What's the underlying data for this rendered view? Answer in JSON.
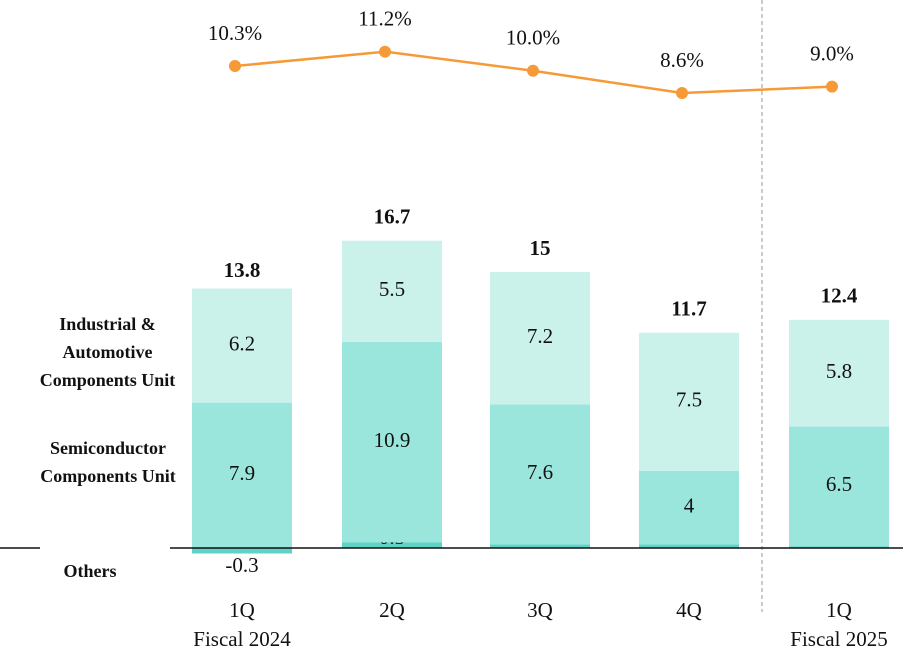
{
  "chart_data": {
    "type": "stacked-bar-line",
    "categories": [
      "1Q",
      "2Q",
      "3Q",
      "4Q",
      "1Q"
    ],
    "period_labels": [
      "Fiscal 2024",
      null,
      null,
      null,
      "Fiscal 2025"
    ],
    "series": [
      {
        "name": "Others",
        "color": "#5fd4c6",
        "values": [
          -0.3,
          0.3,
          0.2,
          0.2,
          0.1
        ]
      },
      {
        "name": "Semiconductor Components Unit",
        "color": "#9be6dc",
        "values": [
          7.9,
          10.9,
          7.6,
          4.0,
          6.5
        ]
      },
      {
        "name": "Industrial & Automotive Components Unit",
        "color": "#cbf1eb",
        "values": [
          6.2,
          5.5,
          7.2,
          7.5,
          5.8
        ]
      }
    ],
    "totals": [
      13.8,
      16.7,
      15.0,
      11.7,
      12.4
    ],
    "line": {
      "color": "#f59a36",
      "values": [
        10.3,
        11.2,
        10.0,
        8.6,
        9.0
      ],
      "value_labels": [
        "10.3%",
        "11.2%",
        "10.0%",
        "8.6%",
        "9.0%"
      ]
    }
  }
}
